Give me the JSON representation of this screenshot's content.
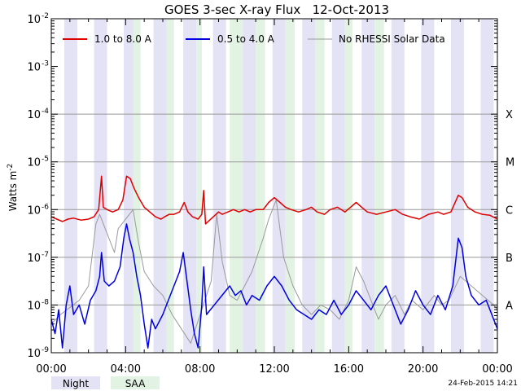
{
  "chart_data": {
    "type": "line",
    "title": "GOES 3-sec X-ray Flux   12-Oct-2013",
    "ylabel": "Watts m",
    "ylabel_sup": "-2",
    "xlabel": "",
    "yscale": "log",
    "ylim_exp": [
      -9,
      -2
    ],
    "xlim_hours": [
      0,
      24
    ],
    "x_ticks": [
      {
        "hour": 0,
        "label": "00:00"
      },
      {
        "hour": 4,
        "label": "04:00"
      },
      {
        "hour": 8,
        "label": "08:00"
      },
      {
        "hour": 12,
        "label": "12:00"
      },
      {
        "hour": 16,
        "label": "16:00"
      },
      {
        "hour": 20,
        "label": "20:00"
      },
      {
        "hour": 24,
        "label": "00:00"
      }
    ],
    "y_ticks": [
      {
        "exp": -2,
        "label": "10",
        "sup": "-2"
      },
      {
        "exp": -3,
        "label": "10",
        "sup": "-3"
      },
      {
        "exp": -4,
        "label": "10",
        "sup": "-4"
      },
      {
        "exp": -5,
        "label": "10",
        "sup": "-5"
      },
      {
        "exp": -6,
        "label": "10",
        "sup": "-6"
      },
      {
        "exp": -7,
        "label": "10",
        "sup": "-7"
      },
      {
        "exp": -8,
        "label": "10",
        "sup": "-8"
      },
      {
        "exp": -9,
        "label": "10",
        "sup": "-9"
      }
    ],
    "flare_classes": [
      {
        "label": "X",
        "exp": -4
      },
      {
        "label": "M",
        "exp": -5
      },
      {
        "label": "C",
        "exp": -6
      },
      {
        "label": "B",
        "exp": -7
      },
      {
        "label": "A",
        "exp": -8
      }
    ],
    "legend": [
      {
        "label": "1.0 to 8.0 A",
        "color": "#e00000"
      },
      {
        "label": "0.5 to 4.0 A",
        "color": "#0000e0"
      },
      {
        "label": "No RHESSI Solar Data",
        "color": "#999999"
      }
    ],
    "night_bands": [
      [
        0.7,
        1.4
      ],
      [
        2.3,
        3.0
      ],
      [
        3.9,
        4.4
      ],
      [
        5.5,
        6.2
      ],
      [
        7.1,
        7.8
      ],
      [
        8.7,
        9.4
      ],
      [
        10.3,
        11.0
      ],
      [
        11.9,
        12.6
      ],
      [
        13.5,
        14.2
      ],
      [
        15.1,
        15.8
      ],
      [
        16.7,
        17.4
      ],
      [
        18.3,
        19.0
      ],
      [
        19.9,
        20.6
      ],
      [
        21.5,
        22.2
      ],
      [
        23.1,
        23.8
      ]
    ],
    "saa_bands": [
      [
        4.4,
        4.8
      ],
      [
        6.2,
        6.6
      ],
      [
        7.8,
        8.1
      ],
      [
        9.6,
        10.3
      ],
      [
        11.0,
        11.5
      ],
      [
        12.6,
        13.1
      ],
      [
        14.2,
        14.7
      ],
      [
        15.8,
        16.2
      ],
      [
        17.4,
        17.9
      ]
    ],
    "series": [
      {
        "name": "1.0 to 8.0 A",
        "color": "#e00000",
        "points": [
          [
            0.0,
            -6.15
          ],
          [
            0.3,
            -6.2
          ],
          [
            0.6,
            -6.25
          ],
          [
            0.9,
            -6.2
          ],
          [
            1.2,
            -6.18
          ],
          [
            1.6,
            -6.22
          ],
          [
            2.0,
            -6.2
          ],
          [
            2.3,
            -6.15
          ],
          [
            2.55,
            -6.0
          ],
          [
            2.7,
            -5.3
          ],
          [
            2.8,
            -5.95
          ],
          [
            3.0,
            -6.0
          ],
          [
            3.3,
            -6.05
          ],
          [
            3.6,
            -6.0
          ],
          [
            3.85,
            -5.8
          ],
          [
            4.05,
            -5.3
          ],
          [
            4.25,
            -5.35
          ],
          [
            4.45,
            -5.55
          ],
          [
            4.7,
            -5.75
          ],
          [
            5.0,
            -5.95
          ],
          [
            5.3,
            -6.05
          ],
          [
            5.6,
            -6.15
          ],
          [
            5.9,
            -6.2
          ],
          [
            6.1,
            -6.15
          ],
          [
            6.35,
            -6.1
          ],
          [
            6.6,
            -6.1
          ],
          [
            6.9,
            -6.05
          ],
          [
            7.15,
            -5.85
          ],
          [
            7.35,
            -6.05
          ],
          [
            7.6,
            -6.15
          ],
          [
            7.9,
            -6.2
          ],
          [
            8.1,
            -6.1
          ],
          [
            8.2,
            -5.6
          ],
          [
            8.3,
            -6.3
          ],
          [
            9.0,
            -6.05
          ],
          [
            9.2,
            -6.1
          ],
          [
            9.5,
            -6.05
          ],
          [
            9.8,
            -6.0
          ],
          [
            10.1,
            -6.05
          ],
          [
            10.4,
            -6.0
          ],
          [
            10.7,
            -6.05
          ],
          [
            11.0,
            -6.0
          ],
          [
            11.4,
            -6.0
          ],
          [
            11.7,
            -5.85
          ],
          [
            12.0,
            -5.75
          ],
          [
            12.3,
            -5.85
          ],
          [
            12.6,
            -5.95
          ],
          [
            12.9,
            -6.0
          ],
          [
            13.3,
            -6.05
          ],
          [
            13.7,
            -6.0
          ],
          [
            14.0,
            -5.95
          ],
          [
            14.3,
            -6.05
          ],
          [
            14.7,
            -6.1
          ],
          [
            15.0,
            -6.0
          ],
          [
            15.4,
            -5.95
          ],
          [
            15.8,
            -6.05
          ],
          [
            16.1,
            -5.95
          ],
          [
            16.4,
            -5.85
          ],
          [
            16.7,
            -5.95
          ],
          [
            17.0,
            -6.05
          ],
          [
            17.5,
            -6.1
          ],
          [
            18.0,
            -6.05
          ],
          [
            18.5,
            -6.0
          ],
          [
            18.9,
            -6.1
          ],
          [
            19.3,
            -6.15
          ],
          [
            19.8,
            -6.2
          ],
          [
            20.3,
            -6.1
          ],
          [
            20.8,
            -6.05
          ],
          [
            21.1,
            -6.1
          ],
          [
            21.5,
            -6.05
          ],
          [
            21.9,
            -5.7
          ],
          [
            22.1,
            -5.75
          ],
          [
            22.4,
            -5.95
          ],
          [
            22.8,
            -6.05
          ],
          [
            23.2,
            -6.1
          ],
          [
            23.6,
            -6.12
          ],
          [
            24.0,
            -6.2
          ]
        ]
      },
      {
        "name": "0.5 to 4.0 A",
        "color": "#0000e0",
        "points": [
          [
            0.0,
            -8.3
          ],
          [
            0.2,
            -8.6
          ],
          [
            0.4,
            -8.1
          ],
          [
            0.6,
            -8.9
          ],
          [
            0.8,
            -8.0
          ],
          [
            1.0,
            -7.6
          ],
          [
            1.2,
            -8.2
          ],
          [
            1.5,
            -8.0
          ],
          [
            1.8,
            -8.4
          ],
          [
            2.1,
            -7.9
          ],
          [
            2.4,
            -7.7
          ],
          [
            2.6,
            -7.4
          ],
          [
            2.7,
            -6.9
          ],
          [
            2.85,
            -7.5
          ],
          [
            3.1,
            -7.6
          ],
          [
            3.4,
            -7.5
          ],
          [
            3.7,
            -7.2
          ],
          [
            3.9,
            -6.6
          ],
          [
            4.05,
            -6.3
          ],
          [
            4.2,
            -6.6
          ],
          [
            4.4,
            -6.9
          ],
          [
            4.6,
            -7.4
          ],
          [
            4.8,
            -7.8
          ],
          [
            5.0,
            -8.4
          ],
          [
            5.2,
            -8.9
          ],
          [
            5.4,
            -8.3
          ],
          [
            5.6,
            -8.5
          ],
          [
            6.0,
            -8.2
          ],
          [
            6.3,
            -7.9
          ],
          [
            6.6,
            -7.6
          ],
          [
            6.9,
            -7.3
          ],
          [
            7.1,
            -6.9
          ],
          [
            7.3,
            -7.5
          ],
          [
            7.5,
            -8.1
          ],
          [
            7.7,
            -8.6
          ],
          [
            7.9,
            -8.9
          ],
          [
            8.1,
            -8.0
          ],
          [
            8.2,
            -7.2
          ],
          [
            8.35,
            -8.2
          ],
          [
            9.6,
            -7.6
          ],
          [
            9.9,
            -7.8
          ],
          [
            10.2,
            -7.7
          ],
          [
            10.5,
            -8.0
          ],
          [
            10.8,
            -7.8
          ],
          [
            11.2,
            -7.9
          ],
          [
            11.6,
            -7.6
          ],
          [
            12.0,
            -7.4
          ],
          [
            12.4,
            -7.6
          ],
          [
            12.8,
            -7.9
          ],
          [
            13.2,
            -8.1
          ],
          [
            13.6,
            -8.2
          ],
          [
            14.0,
            -8.3
          ],
          [
            14.4,
            -8.1
          ],
          [
            14.8,
            -8.2
          ],
          [
            15.2,
            -7.9
          ],
          [
            15.6,
            -8.2
          ],
          [
            16.0,
            -8.0
          ],
          [
            16.4,
            -7.7
          ],
          [
            16.8,
            -7.9
          ],
          [
            17.2,
            -8.1
          ],
          [
            17.6,
            -7.8
          ],
          [
            18.0,
            -7.6
          ],
          [
            18.4,
            -8.0
          ],
          [
            18.8,
            -8.4
          ],
          [
            19.2,
            -8.1
          ],
          [
            19.6,
            -7.7
          ],
          [
            20.0,
            -8.0
          ],
          [
            20.4,
            -8.2
          ],
          [
            20.8,
            -7.8
          ],
          [
            21.2,
            -8.1
          ],
          [
            21.6,
            -7.6
          ],
          [
            21.9,
            -6.6
          ],
          [
            22.1,
            -6.8
          ],
          [
            22.3,
            -7.4
          ],
          [
            22.6,
            -7.8
          ],
          [
            23.0,
            -8.0
          ],
          [
            23.4,
            -7.9
          ],
          [
            23.8,
            -8.3
          ],
          [
            24.0,
            -8.5
          ]
        ]
      },
      {
        "name": "No RHESSI Solar Data",
        "color": "#999999",
        "points": [
          [
            0.0,
            -8.4
          ],
          [
            0.5,
            -8.2
          ],
          [
            1.5,
            -7.9
          ],
          [
            2.0,
            -7.6
          ],
          [
            2.4,
            -6.3
          ],
          [
            2.6,
            -6.1
          ],
          [
            3.0,
            -6.5
          ],
          [
            3.4,
            -6.9
          ],
          [
            3.6,
            -6.4
          ],
          [
            4.4,
            -6.0
          ],
          [
            4.7,
            -6.7
          ],
          [
            5.0,
            -7.3
          ],
          [
            5.5,
            -7.6
          ],
          [
            6.0,
            -7.8
          ],
          [
            6.5,
            -8.2
          ],
          [
            7.0,
            -8.5
          ],
          [
            7.5,
            -8.8
          ],
          [
            8.6,
            -7.5
          ],
          [
            8.9,
            -6.1
          ],
          [
            9.2,
            -7.1
          ],
          [
            9.6,
            -7.8
          ],
          [
            10.0,
            -7.9
          ],
          [
            10.4,
            -7.6
          ],
          [
            10.8,
            -7.3
          ],
          [
            11.4,
            -6.6
          ],
          [
            11.7,
            -6.2
          ],
          [
            12.1,
            -5.8
          ],
          [
            12.5,
            -7.0
          ],
          [
            13.0,
            -7.6
          ],
          [
            13.5,
            -8.0
          ],
          [
            14.0,
            -8.2
          ],
          [
            14.5,
            -8.0
          ],
          [
            15.0,
            -8.1
          ],
          [
            15.5,
            -8.3
          ],
          [
            16.0,
            -7.9
          ],
          [
            16.4,
            -7.2
          ],
          [
            16.8,
            -7.5
          ],
          [
            17.2,
            -7.9
          ],
          [
            17.6,
            -8.3
          ],
          [
            18.0,
            -8.0
          ],
          [
            18.5,
            -7.8
          ],
          [
            19.0,
            -8.2
          ],
          [
            19.4,
            -7.9
          ],
          [
            20.0,
            -8.1
          ],
          [
            20.6,
            -7.8
          ],
          [
            21.0,
            -8.0
          ],
          [
            21.4,
            -7.9
          ],
          [
            22.0,
            -7.4
          ],
          [
            22.6,
            -7.6
          ],
          [
            23.2,
            -7.8
          ],
          [
            23.8,
            -8.0
          ],
          [
            24.0,
            -8.1
          ]
        ]
      }
    ]
  },
  "footer": {
    "night_label": "Night",
    "saa_label": "SAA",
    "timestamp": "24-Feb-2015 14:21",
    "night_color": "#e3e3f5",
    "saa_color": "#e3f3e3"
  }
}
